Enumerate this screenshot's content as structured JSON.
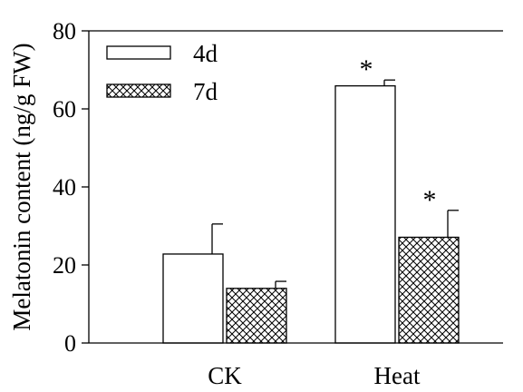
{
  "chart_data": {
    "type": "bar",
    "title": "",
    "xlabel": "",
    "ylabel": "Melatonin content (ng/g FW)",
    "ylim": [
      0,
      80
    ],
    "yticks": [
      0,
      20,
      40,
      60,
      80
    ],
    "grid": false,
    "legend_position": "top-left",
    "categories": [
      "CK",
      "Heat"
    ],
    "series": [
      {
        "name": "4d",
        "fill": "open",
        "values": [
          22.8,
          65.9
        ],
        "errors": [
          7.7,
          1.5
        ],
        "significance": [
          "",
          "*"
        ]
      },
      {
        "name": "7d",
        "fill": "crosshatch",
        "values": [
          14.0,
          27.1
        ],
        "errors": [
          1.8,
          6.9
        ],
        "significance": [
          "",
          "*"
        ]
      }
    ]
  }
}
